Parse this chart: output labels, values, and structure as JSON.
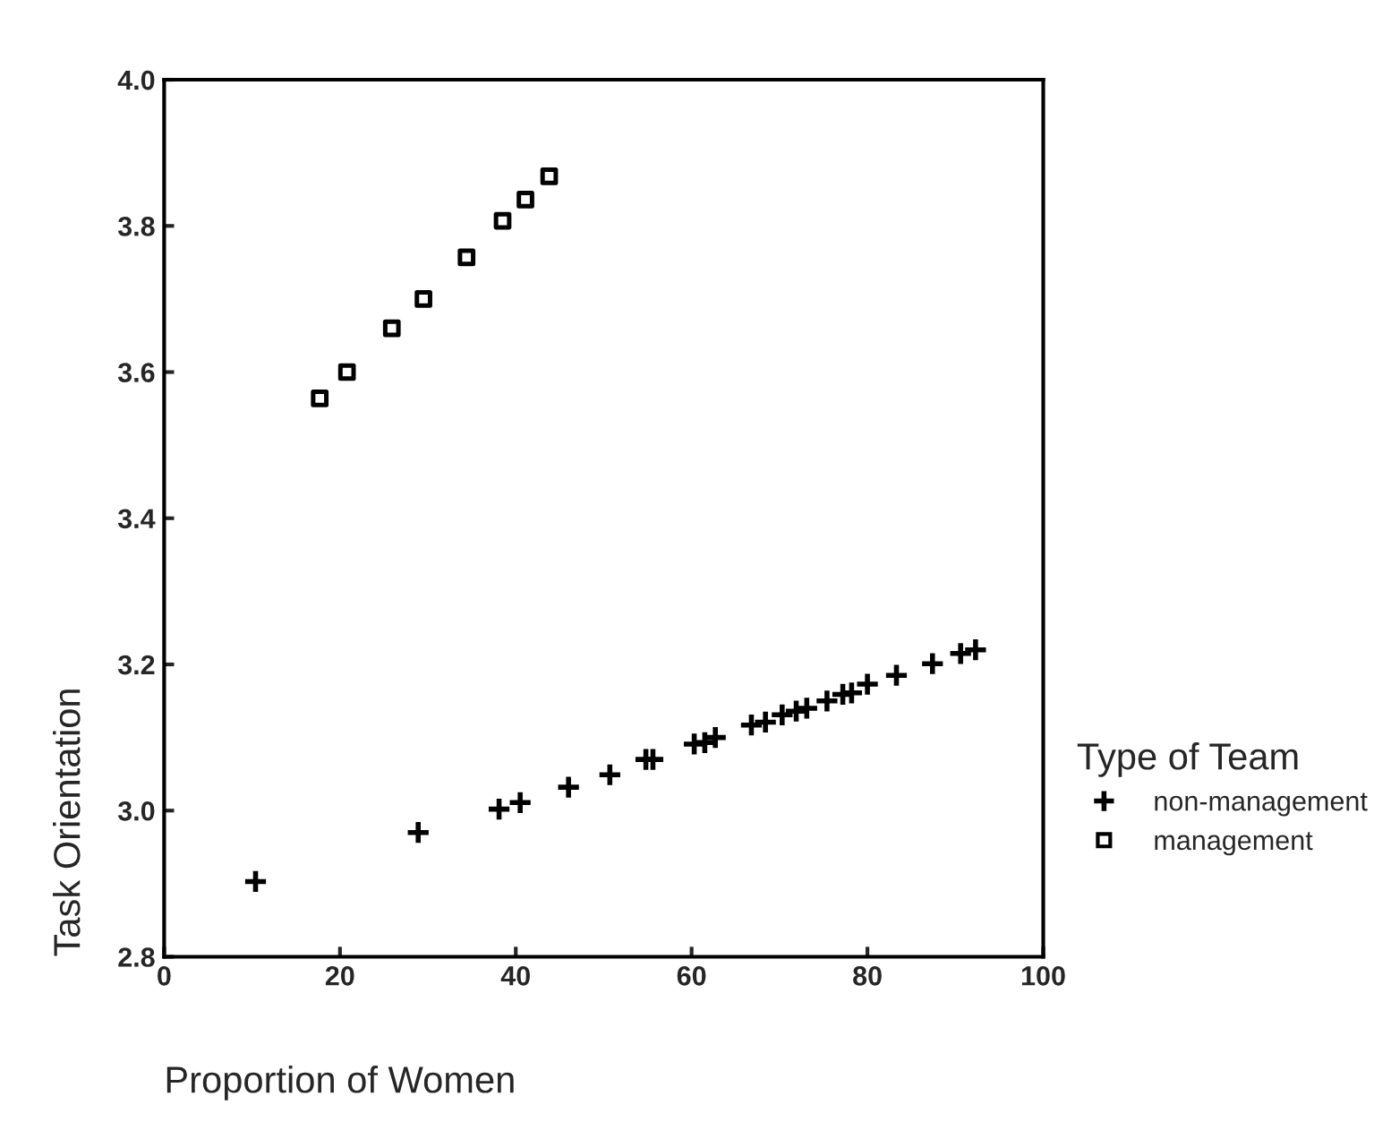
{
  "chart_data": {
    "type": "scatter",
    "xlabel": "Proportion of Women",
    "ylabel": "Task Orientation",
    "legend_title": "Type of Team",
    "legend": "right",
    "grid": false,
    "xlim": [
      0,
      100
    ],
    "xticks": [
      0,
      20,
      40,
      60,
      80,
      100
    ],
    "ylim": [
      2.8,
      4.0
    ],
    "yticks": [
      {
        "value": 2.8,
        "label": "2.8"
      },
      {
        "value": 3.0,
        "label": "3.0"
      },
      {
        "value": 3.2,
        "label": "3.2"
      },
      {
        "value": 3.4,
        "label": "3.4"
      },
      {
        "value": 3.6,
        "label": "3.6"
      },
      {
        "value": 3.8,
        "label": "3.8"
      },
      {
        "value": 4.0,
        "label": "4.0"
      }
    ],
    "series": [
      {
        "name": "non-management",
        "color": "#000000",
        "marker": "cross",
        "x": [
          10.4,
          28.9,
          38.1,
          40.5,
          46.0,
          50.7,
          54.8,
          55.6,
          60.3,
          61.5,
          62.7,
          66.8,
          68.4,
          70.3,
          71.9,
          73.1,
          75.4,
          77.2,
          78.2,
          80.0,
          83.3,
          87.4,
          90.6,
          92.3
        ],
        "values": [
          2.903,
          2.97,
          3.002,
          3.011,
          3.032,
          3.049,
          3.07,
          3.07,
          3.091,
          3.093,
          3.1,
          3.117,
          3.121,
          3.131,
          3.136,
          3.14,
          3.15,
          3.159,
          3.161,
          3.173,
          3.185,
          3.201,
          3.215,
          3.22
        ]
      },
      {
        "name": "management",
        "color": "#000000",
        "marker": "square",
        "x": [
          17.7,
          20.8,
          25.9,
          29.5,
          34.4,
          38.5,
          41.1,
          43.8
        ],
        "values": [
          3.564,
          3.6,
          3.66,
          3.7,
          3.757,
          3.807,
          3.836,
          3.868
        ]
      }
    ]
  }
}
